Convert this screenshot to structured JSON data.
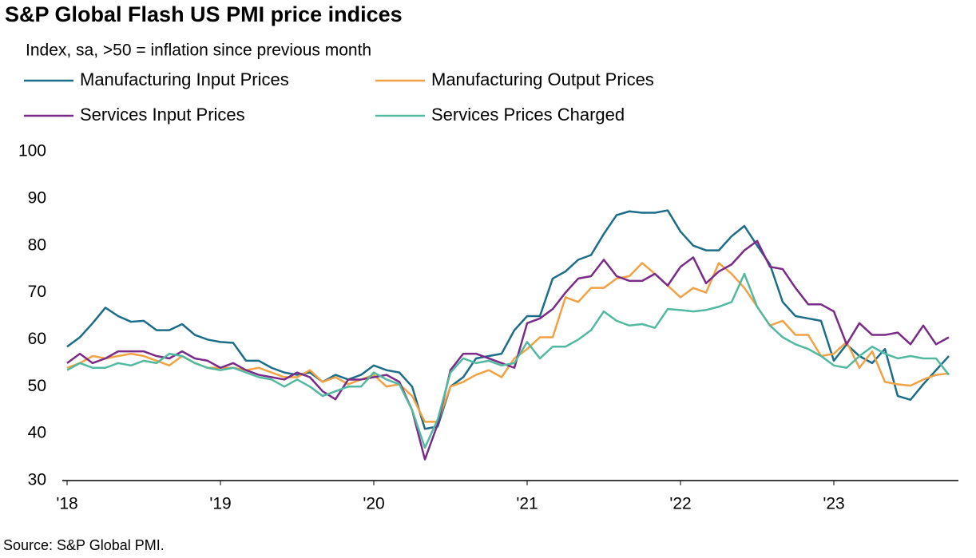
{
  "chart_data": {
    "type": "line",
    "title": "S&P Global Flash US PMI price indices",
    "subtitle": "Index, sa, >50 = inflation since previous month",
    "source": "Source: S&P Global PMI.",
    "categories": [
      "'18",
      null,
      null,
      null,
      null,
      null,
      null,
      null,
      null,
      null,
      null,
      null,
      "'19",
      null,
      null,
      null,
      null,
      null,
      null,
      null,
      null,
      null,
      null,
      null,
      "'20",
      null,
      null,
      null,
      null,
      null,
      null,
      null,
      null,
      null,
      null,
      null,
      "'21",
      null,
      null,
      null,
      null,
      null,
      null,
      null,
      null,
      null,
      null,
      null,
      "'22",
      null,
      null,
      null,
      null,
      null,
      null,
      null,
      null,
      null,
      null,
      null,
      "'23",
      null,
      null,
      null,
      null,
      null,
      null,
      null,
      null,
      null
    ],
    "ylim": [
      30,
      100
    ],
    "yticks": [
      30,
      40,
      50,
      60,
      70,
      80,
      90,
      100
    ],
    "grid": false,
    "series": [
      {
        "name": "Manufacturing Input Prices",
        "color": "#1b6d88",
        "values": [
          58.5,
          60.5,
          63.5,
          66.8,
          65,
          63.8,
          64,
          62,
          62,
          63.3,
          61,
          60,
          59.5,
          59.3,
          55.5,
          55.5,
          54,
          53,
          52.5,
          53,
          51,
          52.5,
          51.5,
          52.5,
          54.5,
          53.5,
          53,
          50,
          41,
          41.5,
          50,
          52,
          56,
          56.5,
          57,
          62,
          65,
          65,
          73,
          74.5,
          77,
          78,
          82.5,
          86.5,
          87.3,
          87,
          87,
          87.5,
          83,
          80,
          79,
          79,
          82,
          84.2,
          80,
          76,
          68,
          65,
          64.5,
          64,
          55.5,
          59,
          56.5,
          55,
          58,
          48,
          47.2,
          50.5,
          53.5,
          56.5
        ]
      },
      {
        "name": "Manufacturing Output Prices",
        "color": "#f2a143",
        "values": [
          54,
          55,
          56.5,
          56,
          56.5,
          57,
          56.5,
          55.5,
          54.5,
          56.5,
          55,
          54,
          54,
          54,
          53.5,
          54,
          53,
          52,
          52,
          53.5,
          51,
          52,
          50.5,
          51.5,
          52.5,
          50,
          50.5,
          48,
          42.5,
          42.5,
          50,
          51,
          52.5,
          53.5,
          52,
          56,
          58,
          60.5,
          60.5,
          69,
          68,
          71,
          71,
          73,
          73.5,
          76.3,
          74,
          71.5,
          69,
          71,
          70,
          76.3,
          74,
          71,
          67,
          63,
          64,
          61,
          61,
          56.5,
          57,
          59.5,
          54,
          57.5,
          51,
          50.5,
          50.2,
          51.5,
          52.5,
          52.8
        ]
      },
      {
        "name": "Services Input Prices",
        "color": "#7a2a88",
        "values": [
          55,
          57,
          55,
          56,
          57.5,
          57.5,
          57.5,
          56.5,
          56,
          57.5,
          56,
          55.5,
          54,
          55,
          53.5,
          52.5,
          52,
          51.5,
          53,
          52,
          49,
          47.3,
          51.5,
          51.5,
          52,
          52.5,
          51,
          45,
          34.5,
          42,
          53.5,
          57,
          57,
          56,
          55,
          54,
          63.5,
          64.5,
          66.5,
          70,
          73,
          73.5,
          77,
          73.5,
          72.5,
          72.5,
          74,
          71.5,
          75.5,
          77.5,
          72,
          74.5,
          76,
          79,
          81,
          75.5,
          75,
          71,
          67.5,
          67.5,
          66,
          59,
          63.5,
          61,
          61,
          61.5,
          59,
          63,
          59,
          60.5
        ]
      },
      {
        "name": "Services Prices Charged",
        "color": "#52b9a1",
        "values": [
          53.5,
          55,
          54,
          54,
          55,
          54.5,
          55.5,
          55,
          57,
          56.5,
          55,
          54,
          53.5,
          54,
          53,
          52,
          51.5,
          50,
          51.5,
          50,
          48,
          49,
          50,
          50,
          53,
          51.5,
          50.5,
          45,
          37,
          43,
          53,
          56,
          55,
          55.5,
          54.5,
          55,
          59.5,
          56,
          58.5,
          58.5,
          60,
          62,
          66,
          64,
          63,
          63.3,
          62.5,
          66.5,
          66.3,
          66,
          66.3,
          67,
          68,
          74,
          67,
          63,
          60.5,
          59,
          58,
          56.5,
          54.5,
          54,
          56.5,
          58.5,
          57,
          56,
          56.5,
          56,
          56,
          52.5
        ]
      }
    ]
  }
}
